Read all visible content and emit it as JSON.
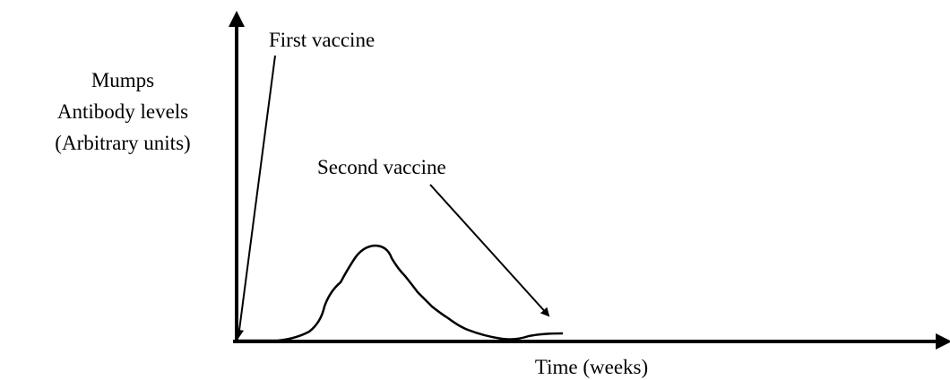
{
  "y_axis_label": [
    "Mumps",
    "Antibody levels",
    "(Arbitrary units)"
  ],
  "x_axis_label": "Time (weeks)",
  "annotations": [
    "First vaccine",
    "Second vaccine"
  ]
}
